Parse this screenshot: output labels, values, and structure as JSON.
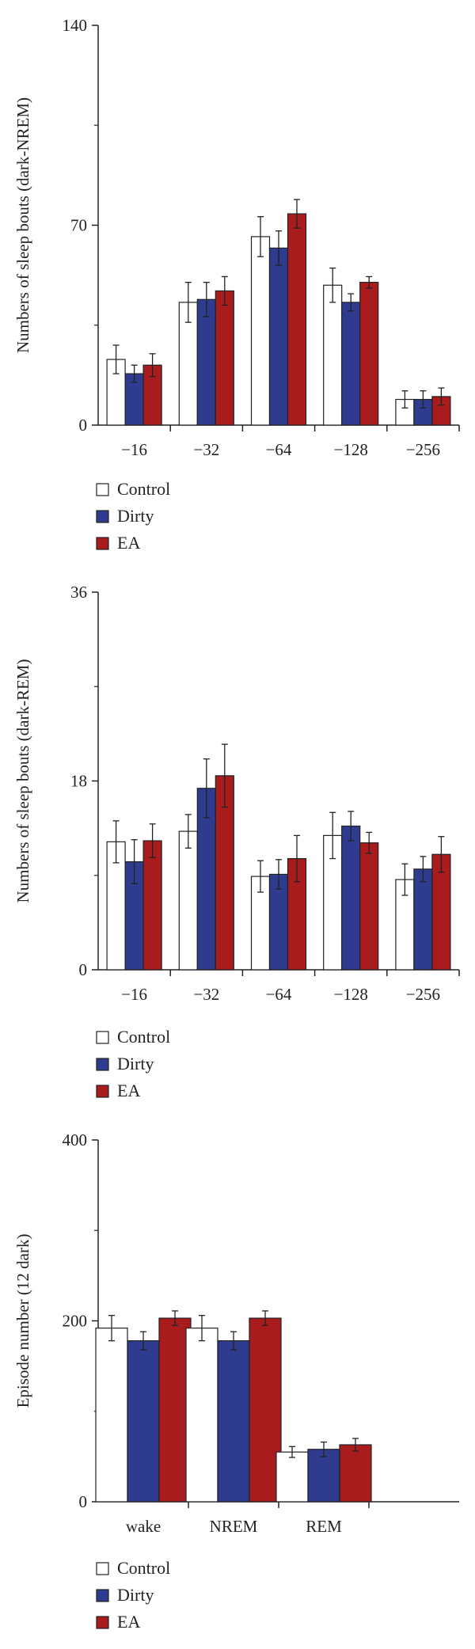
{
  "colors": {
    "Control": "#ffffff",
    "Dirty": "#2e3b8e",
    "EA": "#a81c1e",
    "axis": "#222222"
  },
  "chart_data": [
    {
      "type": "bar",
      "ylabel": "Numbers of sleep bouts (dark-NREM)",
      "ylim": [
        0,
        140
      ],
      "yticks": [
        0,
        70,
        140
      ],
      "categories": [
        "−16",
        "−32",
        "−64",
        "−128",
        "−256"
      ],
      "series": [
        {
          "name": "Control",
          "values": [
            23,
            43,
            66,
            49,
            9
          ],
          "errors": [
            5,
            7,
            7,
            6,
            3
          ]
        },
        {
          "name": "Dirty",
          "values": [
            18,
            44,
            62,
            43,
            9
          ],
          "errors": [
            3,
            6,
            6,
            3,
            3
          ]
        },
        {
          "name": "EA",
          "values": [
            21,
            47,
            74,
            50,
            10
          ],
          "errors": [
            4,
            5,
            5,
            2,
            3
          ]
        }
      ],
      "legend": [
        "Control",
        "Dirty",
        "EA"
      ],
      "legend_position": "bottom-left"
    },
    {
      "type": "bar",
      "ylabel": "Numbers of sleep bouts (dark-REM)",
      "ylim": [
        0,
        36
      ],
      "yticks": [
        0,
        18,
        36
      ],
      "categories": [
        "−16",
        "−32",
        "−64",
        "−128",
        "−256"
      ],
      "series": [
        {
          "name": "Control",
          "values": [
            12.2,
            13.2,
            8.9,
            12.8,
            8.6
          ],
          "errors": [
            2.0,
            1.6,
            1.5,
            2.2,
            1.5
          ]
        },
        {
          "name": "Dirty",
          "values": [
            10.3,
            17.3,
            9.1,
            13.7,
            9.6
          ],
          "errors": [
            2.1,
            2.8,
            1.4,
            1.4,
            1.2
          ]
        },
        {
          "name": "EA",
          "values": [
            12.3,
            18.5,
            10.6,
            12.1,
            11.0
          ],
          "errors": [
            1.6,
            3.0,
            2.2,
            1.0,
            1.7
          ]
        }
      ],
      "legend": [
        "Control",
        "Dirty",
        "EA"
      ],
      "legend_position": "bottom-left"
    },
    {
      "type": "bar",
      "ylabel": "Episode number (12 dark)",
      "ylim": [
        0,
        400
      ],
      "yticks": [
        0,
        200,
        400
      ],
      "categories": [
        "wake",
        "NREM",
        "REM"
      ],
      "series": [
        {
          "name": "Control",
          "values": [
            192,
            192,
            55
          ],
          "errors": [
            14,
            14,
            6
          ]
        },
        {
          "name": "Dirty",
          "values": [
            178,
            178,
            58
          ],
          "errors": [
            10,
            10,
            8
          ]
        },
        {
          "name": "EA",
          "values": [
            203,
            203,
            63
          ],
          "errors": [
            8,
            8,
            7
          ]
        }
      ],
      "legend": [
        "Control",
        "Dirty",
        "EA"
      ],
      "legend_position": "bottom-left"
    }
  ]
}
